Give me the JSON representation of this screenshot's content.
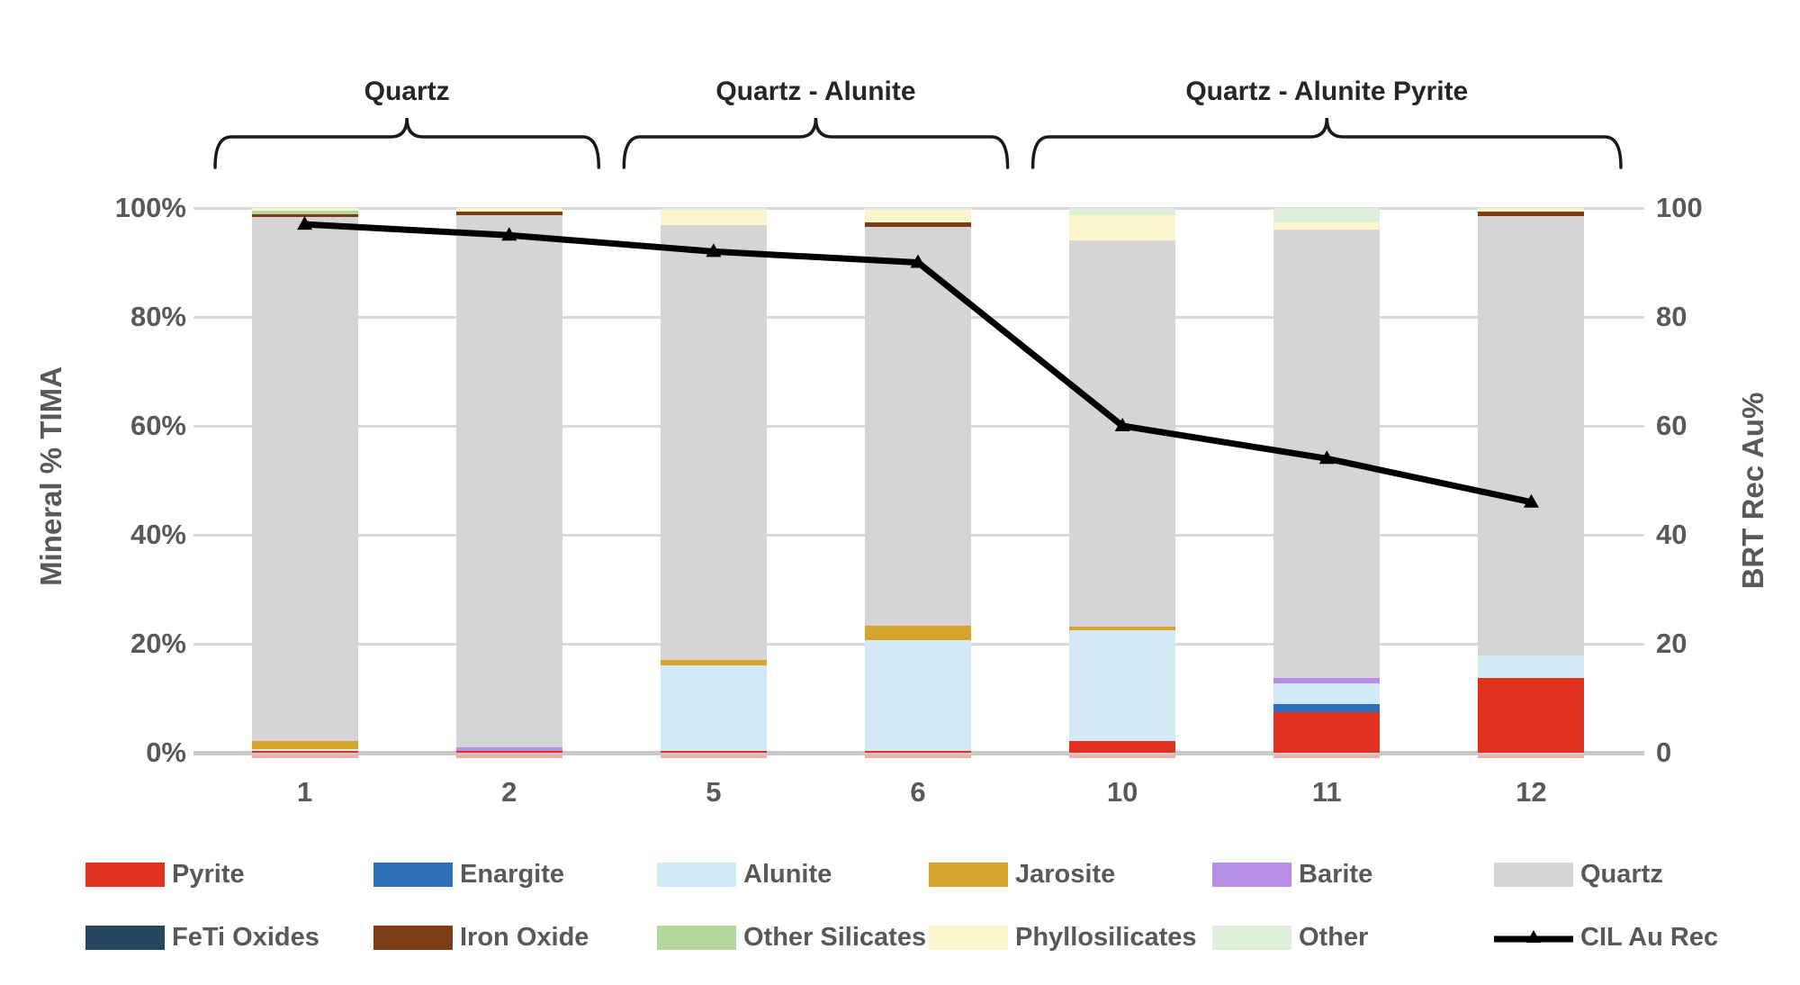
{
  "axes": {
    "left": {
      "title": "Mineral % TIMA",
      "tick_labels": [
        "100%",
        "80%",
        "60%",
        "40%",
        "20%",
        "0%"
      ],
      "tick_values": [
        100,
        80,
        60,
        40,
        20,
        0
      ]
    },
    "right": {
      "title": "BRT Rec Au%",
      "tick_labels": [
        "100",
        "80",
        "60",
        "40",
        "20",
        "0"
      ],
      "tick_values": [
        100,
        80,
        60,
        40,
        20,
        0
      ]
    }
  },
  "groups": [
    {
      "label": "Quartz",
      "from": 0,
      "to": 1
    },
    {
      "label": "Quartz - Alunite",
      "from": 2,
      "to": 3
    },
    {
      "label": "Quartz - Alunite Pyrite",
      "from": 4,
      "to": 6
    }
  ],
  "legend": {
    "rows": [
      [
        {
          "label": "Pyrite",
          "color": "#e2311f",
          "marker": "swatch"
        },
        {
          "label": "Enargite",
          "color": "#2e6fba",
          "marker": "swatch"
        },
        {
          "label": "Alunite",
          "color": "#d3e9f5",
          "marker": "swatch"
        },
        {
          "label": "Jarosite",
          "color": "#d5a62d",
          "marker": "swatch"
        },
        {
          "label": "Barite",
          "color": "#b98ee6",
          "marker": "swatch"
        },
        {
          "label": "Quartz",
          "color": "#d5d5d5",
          "marker": "swatch"
        }
      ],
      [
        {
          "label": "FeTi Oxides",
          "color": "#26475f",
          "marker": "swatch"
        },
        {
          "label": "Iron Oxide",
          "color": "#7c3d16",
          "marker": "swatch"
        },
        {
          "label": "Other Silicates",
          "color": "#b5d79e",
          "marker": "swatch"
        },
        {
          "label": "Phyllosilicates",
          "color": "#fcf6cd",
          "marker": "swatch"
        },
        {
          "label": "Other",
          "color": "#def0d9",
          "marker": "swatch"
        },
        {
          "label": "CIL Au Rec",
          "color": "#000000",
          "marker": "line"
        }
      ]
    ]
  },
  "chart_data": {
    "type": "bar",
    "subtype": "stacked-bars-with-line-overlay",
    "categories": [
      "1",
      "2",
      "5",
      "6",
      "10",
      "11",
      "12"
    ],
    "ylabel_left": "Mineral % TIMA",
    "ylabel_right": "BRT Rec Au%",
    "ylim_left": [
      0,
      100
    ],
    "ylim_right": [
      0,
      100
    ],
    "grid": true,
    "legend_position": "bottom",
    "series": [
      {
        "name": "Pyrite",
        "color": "#e2311f",
        "values": [
          0.3,
          0.3,
          0.3,
          0.3,
          2.1,
          7.4,
          13.8
        ]
      },
      {
        "name": "Enargite",
        "color": "#2e6fba",
        "values": [
          0,
          0,
          0,
          0,
          0,
          1.6,
          0
        ]
      },
      {
        "name": "Alunite",
        "color": "#d3e9f5",
        "values": [
          0.4,
          0,
          15.8,
          20.4,
          20.4,
          3.8,
          4.1
        ]
      },
      {
        "name": "Jarosite",
        "color": "#d5a62d",
        "values": [
          1.4,
          0,
          0.9,
          2.6,
          0.7,
          0,
          0
        ]
      },
      {
        "name": "Barite",
        "color": "#b98ee6",
        "values": [
          0,
          0.7,
          0,
          0,
          0,
          0.9,
          0
        ]
      },
      {
        "name": "Quartz",
        "color": "#d5d5d5",
        "values": [
          96.2,
          97.7,
          79.8,
          73.3,
          70.8,
          82.3,
          80.6
        ]
      },
      {
        "name": "FeTi Oxides",
        "color": "#26475f",
        "values": [
          0,
          0,
          0,
          0,
          0,
          0,
          0
        ]
      },
      {
        "name": "Iron Oxide",
        "color": "#7c3d16",
        "values": [
          0.5,
          0.7,
          0,
          0.8,
          0,
          0,
          0.8
        ]
      },
      {
        "name": "Other Silicates",
        "color": "#b5d79e",
        "values": [
          0.7,
          0,
          0,
          0,
          0,
          0,
          0
        ]
      },
      {
        "name": "Phyllosilicates",
        "color": "#fcf6cd",
        "values": [
          0.5,
          0.6,
          2.8,
          2.2,
          4.7,
          1.4,
          0.7
        ]
      },
      {
        "name": "Other",
        "color": "#def0d9",
        "values": [
          0,
          0,
          0.4,
          0.4,
          1.3,
          2.6,
          0
        ]
      }
    ],
    "line_series": {
      "name": "CIL Au Rec",
      "color": "#000000",
      "axis": "right",
      "values": [
        97,
        95,
        92,
        90,
        60,
        54,
        46
      ]
    }
  }
}
